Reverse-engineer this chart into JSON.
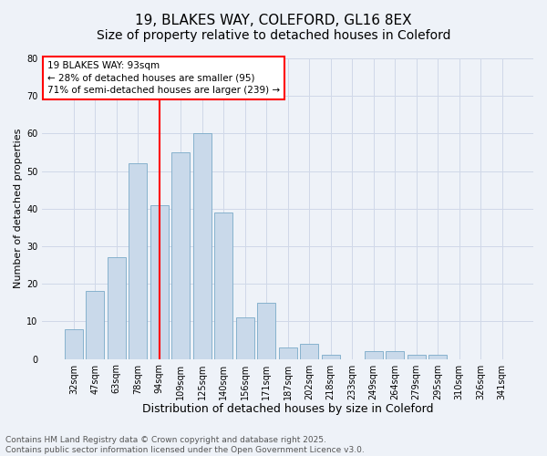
{
  "title1": "19, BLAKES WAY, COLEFORD, GL16 8EX",
  "title2": "Size of property relative to detached houses in Coleford",
  "xlabel": "Distribution of detached houses by size in Coleford",
  "ylabel": "Number of detached properties",
  "categories": [
    "32sqm",
    "47sqm",
    "63sqm",
    "78sqm",
    "94sqm",
    "109sqm",
    "125sqm",
    "140sqm",
    "156sqm",
    "171sqm",
    "187sqm",
    "202sqm",
    "218sqm",
    "233sqm",
    "249sqm",
    "264sqm",
    "279sqm",
    "295sqm",
    "310sqm",
    "326sqm",
    "341sqm"
  ],
  "values": [
    8,
    18,
    27,
    52,
    41,
    55,
    60,
    39,
    11,
    15,
    3,
    4,
    1,
    0,
    2,
    2,
    1,
    1,
    0,
    0,
    0
  ],
  "bar_color": "#c9d9ea",
  "bar_edge_color": "#7aaac8",
  "red_line_index": 4,
  "annotation_text": "19 BLAKES WAY: 93sqm\n← 28% of detached houses are smaller (95)\n71% of semi-detached houses are larger (239) →",
  "annotation_box_color": "white",
  "annotation_box_edge": "red",
  "ylim": [
    0,
    80
  ],
  "yticks": [
    0,
    10,
    20,
    30,
    40,
    50,
    60,
    70,
    80
  ],
  "background_color": "#eef2f8",
  "grid_color": "#d0d8e8",
  "footer_line1": "Contains HM Land Registry data © Crown copyright and database right 2025.",
  "footer_line2": "Contains public sector information licensed under the Open Government Licence v3.0.",
  "title1_fontsize": 11,
  "title2_fontsize": 10,
  "xlabel_fontsize": 9,
  "ylabel_fontsize": 8,
  "tick_fontsize": 7,
  "annotation_fontsize": 7.5,
  "footer_fontsize": 6.5
}
